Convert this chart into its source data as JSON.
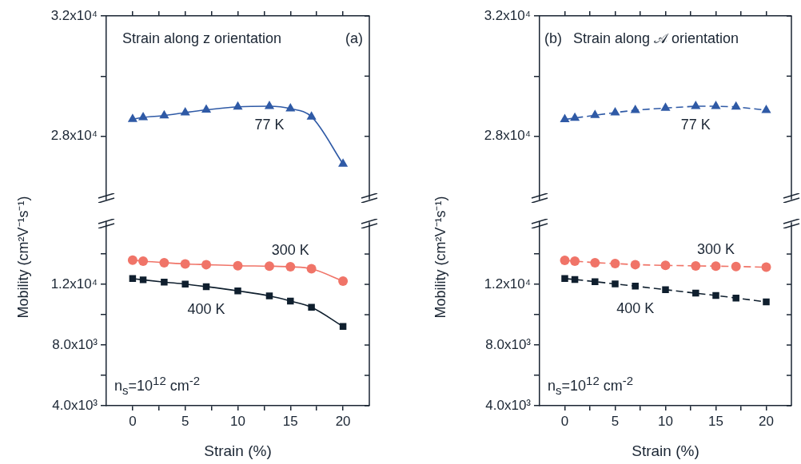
{
  "chart_data": [
    {
      "type": "line",
      "annotations": [
        "Strain along z orientation",
        "(a)"
      ],
      "line_style": "solid",
      "tick_labels": "y",
      "x": [
        0,
        1,
        3,
        5,
        7,
        10,
        13,
        15,
        17,
        20
      ],
      "xlim": [
        -2.5,
        22.5
      ],
      "xticks": [
        0,
        {
          "value": 2.5,
          "label": null
        },
        5,
        {
          "value": 7.5,
          "label": null
        },
        10,
        {
          "value": 12.5,
          "label": null
        },
        15,
        {
          "value": 17.5,
          "label": null
        },
        20
      ],
      "ylim": [
        25900,
        32000
      ],
      "yticks": [
        {
          "value": 28000,
          "label": "2.8x10⁴"
        },
        {
          "value": 30000,
          "label": null
        },
        {
          "value": 32000,
          "label": "3.2x10⁴"
        }
      ],
      "series": [
        {
          "name": "77 K",
          "color": "#2f5aa6",
          "marker": "triangle",
          "values": [
            28570,
            28630,
            28690,
            28790,
            28880,
            28980,
            29000,
            28920,
            28650,
            27080
          ]
        }
      ]
    },
    {
      "type": "line",
      "xlabel": "Strain (%)",
      "ylabel": "Mobility (cm²V⁻¹s⁻¹)",
      "annotations": [
        "n$_{s}$=10$^{12}$ cm$^{-2}$"
      ],
      "line_style": "solid",
      "x": [
        0,
        1,
        3,
        5,
        7,
        10,
        13,
        15,
        17,
        20
      ],
      "xlim": [
        -2.5,
        22.5
      ],
      "xticks": [
        0,
        {
          "value": 2.5,
          "label": null
        },
        5,
        {
          "value": 7.5,
          "label": null
        },
        10,
        {
          "value": 12.5,
          "label": null
        },
        15,
        {
          "value": 17.5,
          "label": null
        },
        20
      ],
      "ylim": [
        4000,
        16100
      ],
      "yticks": [
        {
          "value": 4000,
          "label": "4.0x10³"
        },
        {
          "value": 6000,
          "label": null
        },
        {
          "value": 8000,
          "label": "8.0x10³"
        },
        {
          "value": 10000,
          "label": null
        },
        {
          "value": 12000,
          "label": "1.2x10⁴"
        },
        {
          "value": 14000,
          "label": null
        }
      ],
      "series": [
        {
          "name": "300 K",
          "color": "#f07468",
          "marker": "circle",
          "values": [
            13600,
            13530,
            13430,
            13350,
            13300,
            13230,
            13200,
            13160,
            13030,
            12210
          ]
        },
        {
          "name": "400 K",
          "color": "#0f1f2e",
          "marker": "square",
          "values": [
            12380,
            12300,
            12150,
            12020,
            11850,
            11570,
            11240,
            10900,
            10490,
            9220
          ]
        }
      ]
    },
    {
      "type": "line",
      "annotations": [
        "(b)",
        "Strain along 𝒜 orientation"
      ],
      "line_style": "dashed",
      "tick_labels": "y",
      "x": [
        0,
        1,
        3,
        5,
        7,
        10,
        13,
        15,
        17,
        20
      ],
      "xlim": [
        -2.5,
        22.5
      ],
      "xticks": [
        0,
        {
          "value": 2.5,
          "label": null
        },
        5,
        {
          "value": 7.5,
          "label": null
        },
        10,
        {
          "value": 12.5,
          "label": null
        },
        15,
        {
          "value": 17.5,
          "label": null
        },
        20
      ],
      "ylim": [
        25900,
        32000
      ],
      "yticks": [
        {
          "value": 28000,
          "label": "2.8x10⁴"
        },
        {
          "value": 30000,
          "label": null
        },
        {
          "value": 32000,
          "label": "3.2x10⁴"
        }
      ],
      "series": [
        {
          "name": "77 K",
          "color": "#2f5aa6",
          "marker": "triangle",
          "values": [
            28560,
            28610,
            28700,
            28790,
            28870,
            28940,
            29000,
            29000,
            28980,
            28870
          ]
        }
      ]
    },
    {
      "type": "line",
      "xlabel": "Strain (%)",
      "ylabel": "Mobility (cm²V⁻¹s⁻¹)",
      "annotations": [
        "n$_{s}$=10$^{12}$ cm$^{-2}$"
      ],
      "line_style": "dashed",
      "x": [
        0,
        1,
        3,
        5,
        7,
        10,
        13,
        15,
        17,
        20
      ],
      "xlim": [
        -2.5,
        22.5
      ],
      "xticks": [
        0,
        {
          "value": 2.5,
          "label": null
        },
        5,
        {
          "value": 7.5,
          "label": null
        },
        10,
        {
          "value": 12.5,
          "label": null
        },
        15,
        {
          "value": 17.5,
          "label": null
        },
        20
      ],
      "ylim": [
        4000,
        16100
      ],
      "yticks": [
        {
          "value": 4000,
          "label": "4.0x10³"
        },
        {
          "value": 6000,
          "label": null
        },
        {
          "value": 8000,
          "label": "8.0x10³"
        },
        {
          "value": 10000,
          "label": null
        },
        {
          "value": 12000,
          "label": "1.2x10⁴"
        },
        {
          "value": 14000,
          "label": null
        }
      ],
      "series": [
        {
          "name": "300 K",
          "color": "#f07468",
          "marker": "circle",
          "values": [
            13580,
            13530,
            13430,
            13370,
            13300,
            13250,
            13220,
            13200,
            13180,
            13130
          ]
        },
        {
          "name": "400 K",
          "color": "#0f1f2e",
          "marker": "square",
          "values": [
            12380,
            12320,
            12180,
            12030,
            11880,
            11650,
            11420,
            11270,
            11100,
            10840
          ]
        }
      ]
    }
  ]
}
